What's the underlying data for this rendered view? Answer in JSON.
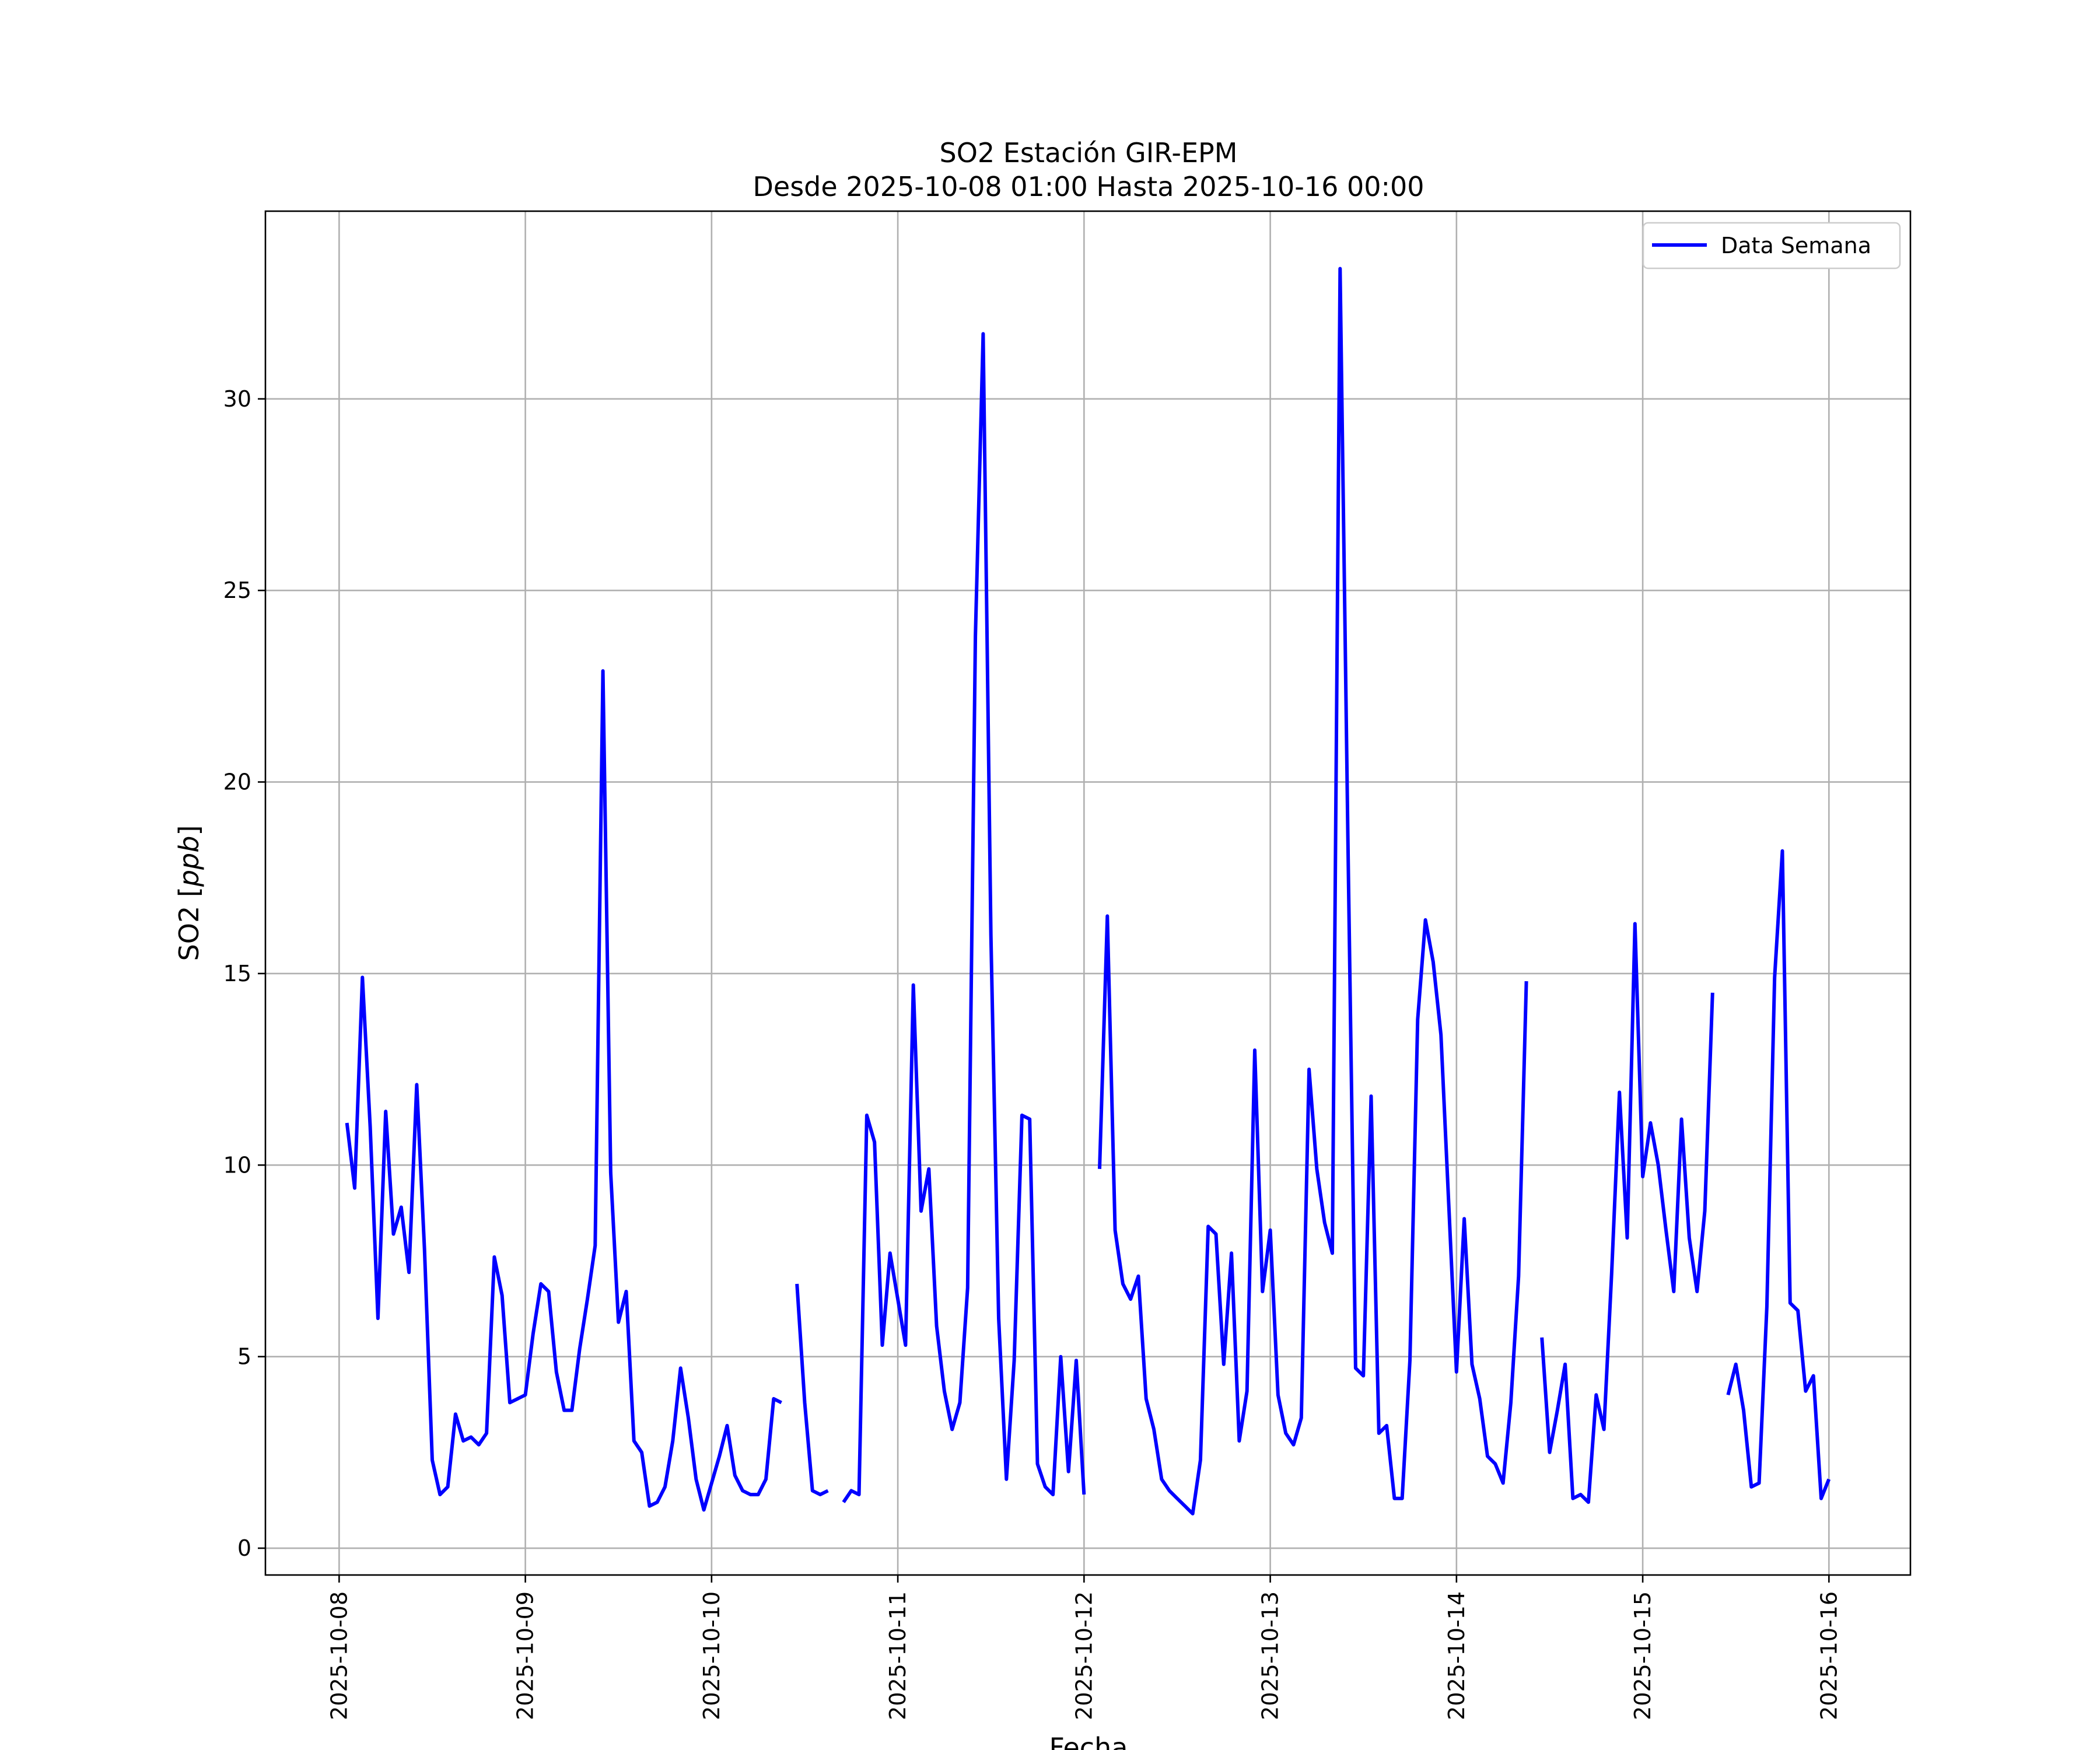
{
  "chart_data": {
    "type": "line",
    "title": "SO2 Estación GIR-EPM",
    "subtitle": "Desde 2025-10-08 01:00 Hasta 2025-10-16 00:00",
    "xlabel": "Fecha",
    "ylabel": "SO2 [ppb]",
    "ylabel_plain": "SO2 [",
    "ylabel_unit": "ppb",
    "ylabel_close": "]",
    "xlim": [
      "2025-10-07 14:30",
      "2025-10-16 10:30"
    ],
    "ylim": [
      -0.7,
      34.9
    ],
    "yticks": [
      0,
      5,
      10,
      15,
      20,
      25,
      30
    ],
    "ytick_labels": [
      "0",
      "5",
      "10",
      "15",
      "20",
      "25",
      "30"
    ],
    "xticks": [
      "2025-10-08",
      "2025-10-09",
      "2025-10-10",
      "2025-10-11",
      "2025-10-12",
      "2025-10-13",
      "2025-10-14",
      "2025-10-15",
      "2025-10-16"
    ],
    "grid": true,
    "legend_position": "top-right",
    "series": [
      {
        "name": "Data Semana",
        "color": "#0000ff",
        "points": [
          [
            "2025-10-08 01:00",
            11.1
          ],
          [
            "2025-10-08 02:00",
            9.4
          ],
          [
            "2025-10-08 03:00",
            14.9
          ],
          [
            "2025-10-08 04:00",
            11.0
          ],
          [
            "2025-10-08 05:00",
            6.0
          ],
          [
            "2025-10-08 06:00",
            11.4
          ],
          [
            "2025-10-08 07:00",
            8.2
          ],
          [
            "2025-10-08 08:00",
            8.9
          ],
          [
            "2025-10-08 09:00",
            7.2
          ],
          [
            "2025-10-08 10:00",
            12.1
          ],
          [
            "2025-10-08 11:00",
            7.8
          ],
          [
            "2025-10-08 12:00",
            2.3
          ],
          [
            "2025-10-08 13:00",
            1.4
          ],
          [
            "2025-10-08 14:00",
            1.6
          ],
          [
            "2025-10-08 15:00",
            3.5
          ],
          [
            "2025-10-08 16:00",
            2.8
          ],
          [
            "2025-10-08 17:00",
            2.9
          ],
          [
            "2025-10-08 18:00",
            2.7
          ],
          [
            "2025-10-08 19:00",
            3.0
          ],
          [
            "2025-10-08 20:00",
            7.6
          ],
          [
            "2025-10-08 21:00",
            6.6
          ],
          [
            "2025-10-08 22:00",
            3.8
          ],
          [
            "2025-10-08 23:00",
            3.9
          ],
          [
            "2025-10-09 00:00",
            4.0
          ],
          [
            "2025-10-09 01:00",
            5.6
          ],
          [
            "2025-10-09 02:00",
            6.9
          ],
          [
            "2025-10-09 03:00",
            6.7
          ],
          [
            "2025-10-09 04:00",
            4.6
          ],
          [
            "2025-10-09 05:00",
            3.6
          ],
          [
            "2025-10-09 06:00",
            3.6
          ],
          [
            "2025-10-09 07:00",
            5.2
          ],
          [
            "2025-10-09 08:00",
            6.5
          ],
          [
            "2025-10-09 09:00",
            7.9
          ],
          [
            "2025-10-09 10:00",
            22.9
          ],
          [
            "2025-10-09 11:00",
            9.8
          ],
          [
            "2025-10-09 12:00",
            5.9
          ],
          [
            "2025-10-09 13:00",
            6.7
          ],
          [
            "2025-10-09 14:00",
            2.8
          ],
          [
            "2025-10-09 15:00",
            2.5
          ],
          [
            "2025-10-09 16:00",
            1.1
          ],
          [
            "2025-10-09 17:00",
            1.2
          ],
          [
            "2025-10-09 18:00",
            1.6
          ],
          [
            "2025-10-09 19:00",
            2.8
          ],
          [
            "2025-10-09 20:00",
            4.7
          ],
          [
            "2025-10-09 21:00",
            3.4
          ],
          [
            "2025-10-09 22:00",
            1.8
          ],
          [
            "2025-10-09 23:00",
            1.0
          ],
          [
            "2025-10-10 00:00",
            1.7
          ],
          [
            "2025-10-10 01:00",
            2.4
          ],
          [
            "2025-10-10 02:00",
            3.2
          ],
          [
            "2025-10-10 03:00",
            1.9
          ],
          [
            "2025-10-10 04:00",
            1.5
          ],
          [
            "2025-10-10 05:00",
            1.4
          ],
          [
            "2025-10-10 06:00",
            1.4
          ],
          [
            "2025-10-10 07:00",
            1.8
          ],
          [
            "2025-10-10 08:00",
            3.9
          ],
          [
            "2025-10-10 09:00",
            3.8
          ],
          [
            "2025-10-10 10:00",
            null
          ],
          [
            "2025-10-10 11:00",
            6.9
          ],
          [
            "2025-10-10 12:00",
            3.8
          ],
          [
            "2025-10-10 13:00",
            1.5
          ],
          [
            "2025-10-10 14:00",
            1.4
          ],
          [
            "2025-10-10 15:00",
            1.5
          ],
          [
            "2025-10-10 16:00",
            null
          ],
          [
            "2025-10-10 17:00",
            1.2
          ],
          [
            "2025-10-10 18:00",
            1.5
          ],
          [
            "2025-10-10 19:00",
            1.4
          ],
          [
            "2025-10-10 20:00",
            11.3
          ],
          [
            "2025-10-10 21:00",
            10.6
          ],
          [
            "2025-10-10 22:00",
            5.3
          ],
          [
            "2025-10-10 23:00",
            7.7
          ],
          [
            "2025-10-11 00:00",
            6.5
          ],
          [
            "2025-10-11 01:00",
            5.3
          ],
          [
            "2025-10-11 02:00",
            14.7
          ],
          [
            "2025-10-11 03:00",
            8.8
          ],
          [
            "2025-10-11 04:00",
            9.9
          ],
          [
            "2025-10-11 05:00",
            5.8
          ],
          [
            "2025-10-11 06:00",
            4.1
          ],
          [
            "2025-10-11 07:00",
            3.1
          ],
          [
            "2025-10-11 08:00",
            3.8
          ],
          [
            "2025-10-11 09:00",
            6.8
          ],
          [
            "2025-10-11 10:00",
            23.8
          ],
          [
            "2025-10-11 11:00",
            31.7
          ],
          [
            "2025-10-11 12:00",
            16.0
          ],
          [
            "2025-10-11 13:00",
            6.0
          ],
          [
            "2025-10-11 14:00",
            1.8
          ],
          [
            "2025-10-11 15:00",
            4.9
          ],
          [
            "2025-10-11 16:00",
            11.3
          ],
          [
            "2025-10-11 17:00",
            11.2
          ],
          [
            "2025-10-11 18:00",
            2.2
          ],
          [
            "2025-10-11 19:00",
            1.6
          ],
          [
            "2025-10-11 20:00",
            1.4
          ],
          [
            "2025-10-11 21:00",
            5.0
          ],
          [
            "2025-10-11 22:00",
            2.0
          ],
          [
            "2025-10-11 23:00",
            4.9
          ],
          [
            "2025-10-12 00:00",
            1.4
          ],
          [
            "2025-10-12 01:00",
            null
          ],
          [
            "2025-10-12 02:00",
            9.9
          ],
          [
            "2025-10-12 03:00",
            16.5
          ],
          [
            "2025-10-12 04:00",
            8.3
          ],
          [
            "2025-10-12 05:00",
            6.9
          ],
          [
            "2025-10-12 06:00",
            6.5
          ],
          [
            "2025-10-12 07:00",
            7.1
          ],
          [
            "2025-10-12 08:00",
            3.9
          ],
          [
            "2025-10-12 09:00",
            3.1
          ],
          [
            "2025-10-12 10:00",
            1.8
          ],
          [
            "2025-10-12 11:00",
            1.5
          ],
          [
            "2025-10-12 12:00",
            1.3
          ],
          [
            "2025-10-12 13:00",
            1.1
          ],
          [
            "2025-10-12 14:00",
            0.9
          ],
          [
            "2025-10-12 15:00",
            2.3
          ],
          [
            "2025-10-12 16:00",
            8.4
          ],
          [
            "2025-10-12 17:00",
            8.2
          ],
          [
            "2025-10-12 18:00",
            4.8
          ],
          [
            "2025-10-12 19:00",
            7.7
          ],
          [
            "2025-10-12 20:00",
            2.8
          ],
          [
            "2025-10-12 21:00",
            4.1
          ],
          [
            "2025-10-12 22:00",
            13.0
          ],
          [
            "2025-10-12 23:00",
            6.7
          ],
          [
            "2025-10-13 00:00",
            8.3
          ],
          [
            "2025-10-13 01:00",
            4.0
          ],
          [
            "2025-10-13 02:00",
            3.0
          ],
          [
            "2025-10-13 03:00",
            2.7
          ],
          [
            "2025-10-13 04:00",
            3.4
          ],
          [
            "2025-10-13 05:00",
            12.5
          ],
          [
            "2025-10-13 06:00",
            9.9
          ],
          [
            "2025-10-13 07:00",
            8.5
          ],
          [
            "2025-10-13 08:00",
            7.7
          ],
          [
            "2025-10-13 09:00",
            33.4
          ],
          [
            "2025-10-13 10:00",
            18.6
          ],
          [
            "2025-10-13 11:00",
            4.7
          ],
          [
            "2025-10-13 12:00",
            4.5
          ],
          [
            "2025-10-13 13:00",
            11.8
          ],
          [
            "2025-10-13 14:00",
            3.0
          ],
          [
            "2025-10-13 15:00",
            3.2
          ],
          [
            "2025-10-13 16:00",
            1.3
          ],
          [
            "2025-10-13 17:00",
            1.3
          ],
          [
            "2025-10-13 18:00",
            4.9
          ],
          [
            "2025-10-13 19:00",
            13.8
          ],
          [
            "2025-10-13 20:00",
            16.4
          ],
          [
            "2025-10-13 21:00",
            15.3
          ],
          [
            "2025-10-13 22:00",
            13.4
          ],
          [
            "2025-10-13 23:00",
            9.0
          ],
          [
            "2025-10-14 00:00",
            4.6
          ],
          [
            "2025-10-14 01:00",
            8.6
          ],
          [
            "2025-10-14 02:00",
            4.8
          ],
          [
            "2025-10-14 03:00",
            3.9
          ],
          [
            "2025-10-14 04:00",
            2.4
          ],
          [
            "2025-10-14 05:00",
            2.2
          ],
          [
            "2025-10-14 06:00",
            1.7
          ],
          [
            "2025-10-14 07:00",
            3.8
          ],
          [
            "2025-10-14 08:00",
            7.1
          ],
          [
            "2025-10-14 09:00",
            14.8
          ],
          [
            "2025-10-14 10:00",
            null
          ],
          [
            "2025-10-14 11:00",
            5.5
          ],
          [
            "2025-10-14 12:00",
            2.5
          ],
          [
            "2025-10-14 13:00",
            3.6
          ],
          [
            "2025-10-14 14:00",
            4.8
          ],
          [
            "2025-10-14 15:00",
            1.3
          ],
          [
            "2025-10-14 16:00",
            1.4
          ],
          [
            "2025-10-14 17:00",
            1.2
          ],
          [
            "2025-10-14 18:00",
            4.0
          ],
          [
            "2025-10-14 19:00",
            3.1
          ],
          [
            "2025-10-14 20:00",
            7.2
          ],
          [
            "2025-10-14 21:00",
            11.9
          ],
          [
            "2025-10-14 22:00",
            8.1
          ],
          [
            "2025-10-14 23:00",
            16.3
          ],
          [
            "2025-10-15 00:00",
            9.7
          ],
          [
            "2025-10-15 01:00",
            11.1
          ],
          [
            "2025-10-15 02:00",
            10.0
          ],
          [
            "2025-10-15 03:00",
            8.3
          ],
          [
            "2025-10-15 04:00",
            6.7
          ],
          [
            "2025-10-15 05:00",
            11.2
          ],
          [
            "2025-10-15 06:00",
            8.1
          ],
          [
            "2025-10-15 07:00",
            6.7
          ],
          [
            "2025-10-15 08:00",
            8.8
          ],
          [
            "2025-10-15 09:00",
            14.5
          ],
          [
            "2025-10-15 10:00",
            null
          ],
          [
            "2025-10-15 11:00",
            4.0
          ],
          [
            "2025-10-15 12:00",
            4.8
          ],
          [
            "2025-10-15 13:00",
            3.6
          ],
          [
            "2025-10-15 14:00",
            1.6
          ],
          [
            "2025-10-15 15:00",
            1.7
          ],
          [
            "2025-10-15 16:00",
            6.3
          ],
          [
            "2025-10-15 17:00",
            14.9
          ],
          [
            "2025-10-15 18:00",
            18.2
          ],
          [
            "2025-10-15 19:00",
            6.4
          ],
          [
            "2025-10-15 20:00",
            6.2
          ],
          [
            "2025-10-15 21:00",
            4.1
          ],
          [
            "2025-10-15 22:00",
            4.5
          ],
          [
            "2025-10-15 23:00",
            1.3
          ],
          [
            "2025-10-16 00:00",
            1.8
          ]
        ]
      }
    ]
  }
}
